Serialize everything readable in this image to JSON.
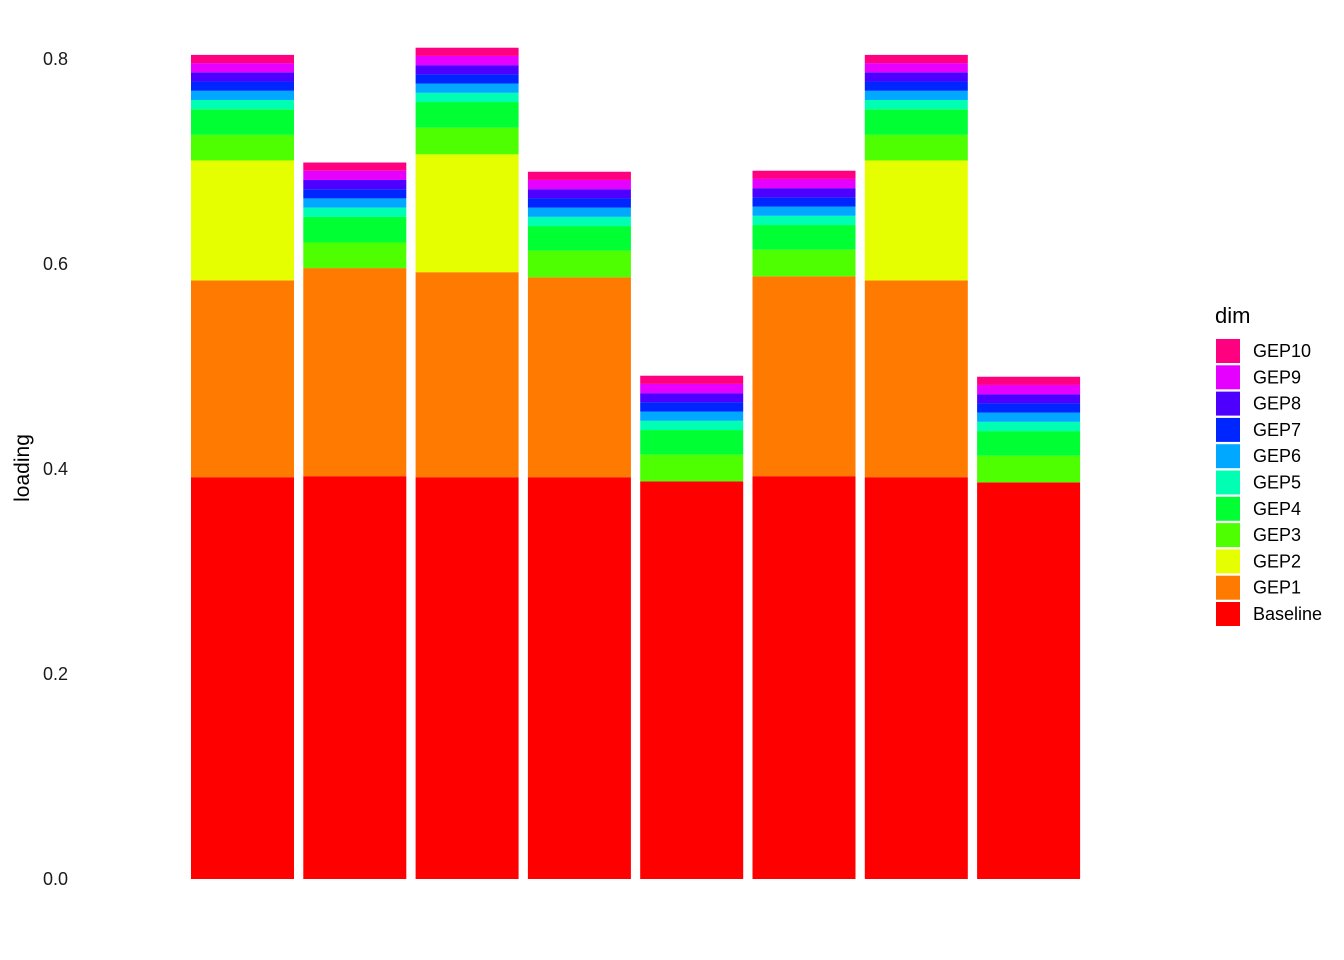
{
  "chart_data": {
    "type": "bar",
    "stacked": true,
    "title": "",
    "xlabel": "",
    "ylabel": "loading",
    "ylim": [
      0,
      0.8
    ],
    "yticks": [
      "0.0",
      "0.2",
      "0.4",
      "0.6",
      "0.8"
    ],
    "categories": [
      "",
      "",
      "",
      "",
      "",
      "",
      "",
      ""
    ],
    "grid": false,
    "legend": {
      "title": "dim",
      "position": "right"
    },
    "series": [
      {
        "name": "Baseline",
        "color": "#FF0000",
        "values": [
          0.392,
          0.393,
          0.392,
          0.392,
          0.388,
          0.393,
          0.392,
          0.387
        ]
      },
      {
        "name": "GEP1",
        "color": "#FF7A00",
        "values": [
          0.192,
          0.203,
          0.2,
          0.195,
          0.0,
          0.195,
          0.192,
          0.0
        ]
      },
      {
        "name": "GEP2",
        "color": "#E6FF00",
        "values": [
          0.117,
          0.0,
          0.115,
          0.0,
          0.0,
          0.0,
          0.117,
          0.0
        ]
      },
      {
        "name": "GEP3",
        "color": "#4DFF00",
        "values": [
          0.025,
          0.025,
          0.026,
          0.026,
          0.026,
          0.026,
          0.025,
          0.026
        ]
      },
      {
        "name": "GEP4",
        "color": "#00FF33",
        "values": [
          0.025,
          0.025,
          0.025,
          0.024,
          0.024,
          0.024,
          0.025,
          0.024
        ]
      },
      {
        "name": "GEP5",
        "color": "#00FFB3",
        "values": [
          0.009,
          0.009,
          0.009,
          0.009,
          0.009,
          0.009,
          0.009,
          0.009
        ]
      },
      {
        "name": "GEP6",
        "color": "#00A8FF",
        "values": [
          0.009,
          0.009,
          0.009,
          0.009,
          0.009,
          0.009,
          0.009,
          0.009
        ]
      },
      {
        "name": "GEP7",
        "color": "#0026FF",
        "values": [
          0.009,
          0.009,
          0.009,
          0.009,
          0.009,
          0.009,
          0.009,
          0.009
        ]
      },
      {
        "name": "GEP8",
        "color": "#4D00FF",
        "values": [
          0.009,
          0.009,
          0.009,
          0.009,
          0.009,
          0.009,
          0.009,
          0.009
        ]
      },
      {
        "name": "GEP9",
        "color": "#E500FF",
        "values": [
          0.009,
          0.009,
          0.009,
          0.009,
          0.009,
          0.009,
          0.009,
          0.009
        ]
      },
      {
        "name": "GEP10",
        "color": "#FF0080",
        "values": [
          0.008,
          0.008,
          0.008,
          0.008,
          0.008,
          0.008,
          0.008,
          0.008
        ]
      }
    ]
  }
}
